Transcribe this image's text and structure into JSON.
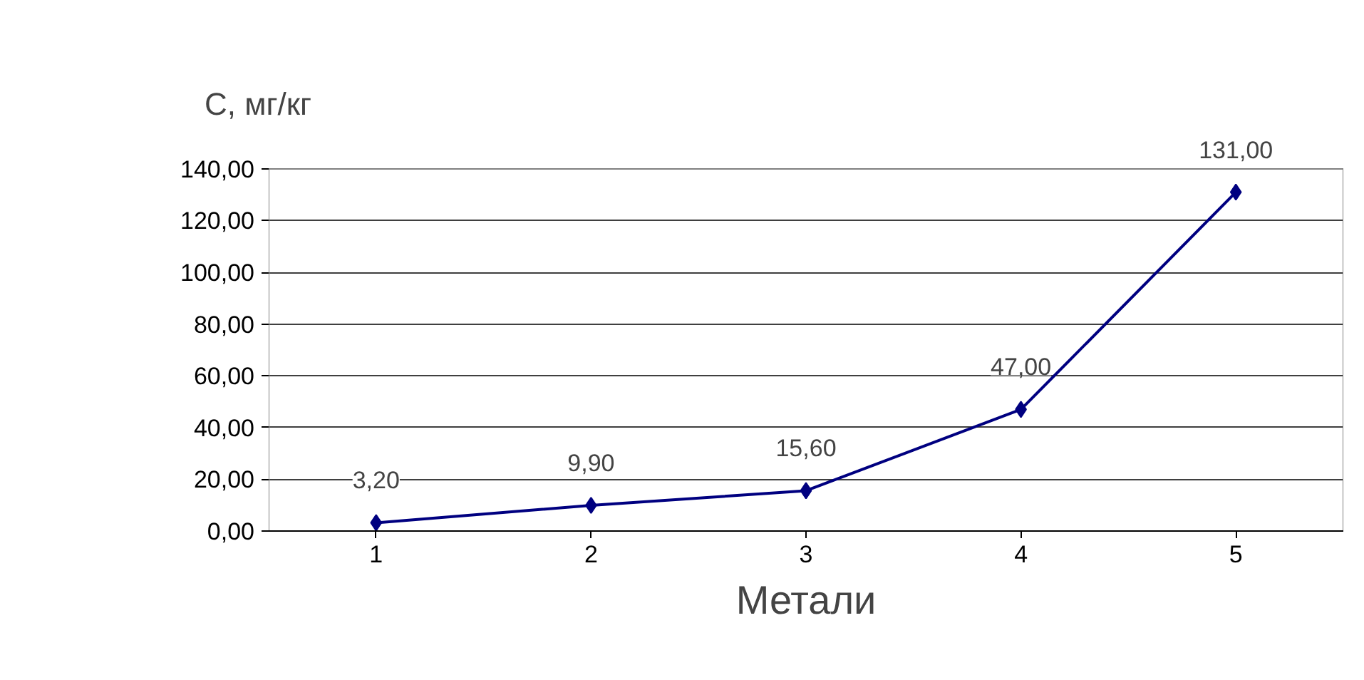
{
  "chart_data": {
    "type": "line",
    "xlabel": "Метали",
    "ylabel": "C, мг/кг",
    "categories": [
      "1",
      "2",
      "3",
      "4",
      "5"
    ],
    "series": [
      {
        "color": "#000080",
        "values": [
          3.2,
          9.9,
          15.6,
          47.0,
          131.0
        ],
        "value_labels": [
          "3,20",
          "9,90",
          "15,60",
          "47,00",
          "131,00"
        ]
      }
    ],
    "ylim": [
      0,
      140
    ],
    "yticks": [
      {
        "value": 0,
        "label": "0,00"
      },
      {
        "value": 20,
        "label": "20,00"
      },
      {
        "value": 40,
        "label": "40,00"
      },
      {
        "value": 60,
        "label": "60,00"
      },
      {
        "value": 80,
        "label": "80,00"
      },
      {
        "value": 100,
        "label": "100,00"
      },
      {
        "value": 120,
        "label": "120,00"
      },
      {
        "value": 140,
        "label": "140,00"
      }
    ],
    "grid": "y",
    "marker": "diamond",
    "line_style": "solid"
  }
}
